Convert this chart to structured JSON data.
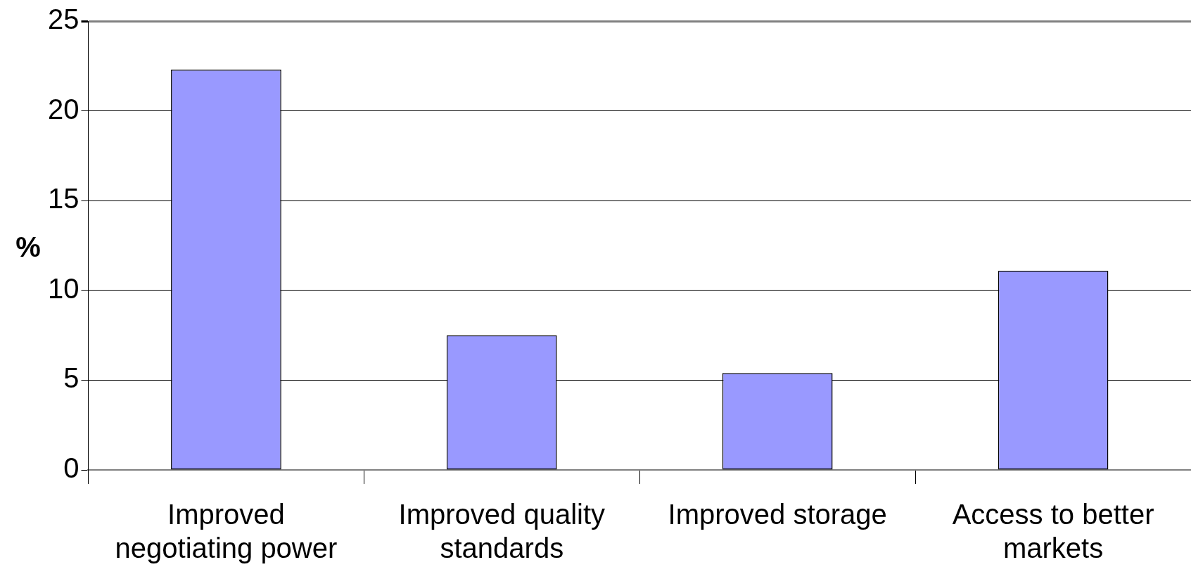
{
  "chart_data": {
    "type": "bar",
    "ylabel": "%",
    "categories": [
      "Improved negotiating power",
      "Improved quality standards",
      "Improved storage",
      "Access to better markets"
    ],
    "values": [
      22.3,
      7.5,
      5.4,
      11.1
    ],
    "color": "#9999ff",
    "ylim": [
      0,
      25
    ],
    "yticks": [
      0,
      5,
      10,
      15,
      20,
      25
    ],
    "grid": "y",
    "legend": false
  }
}
